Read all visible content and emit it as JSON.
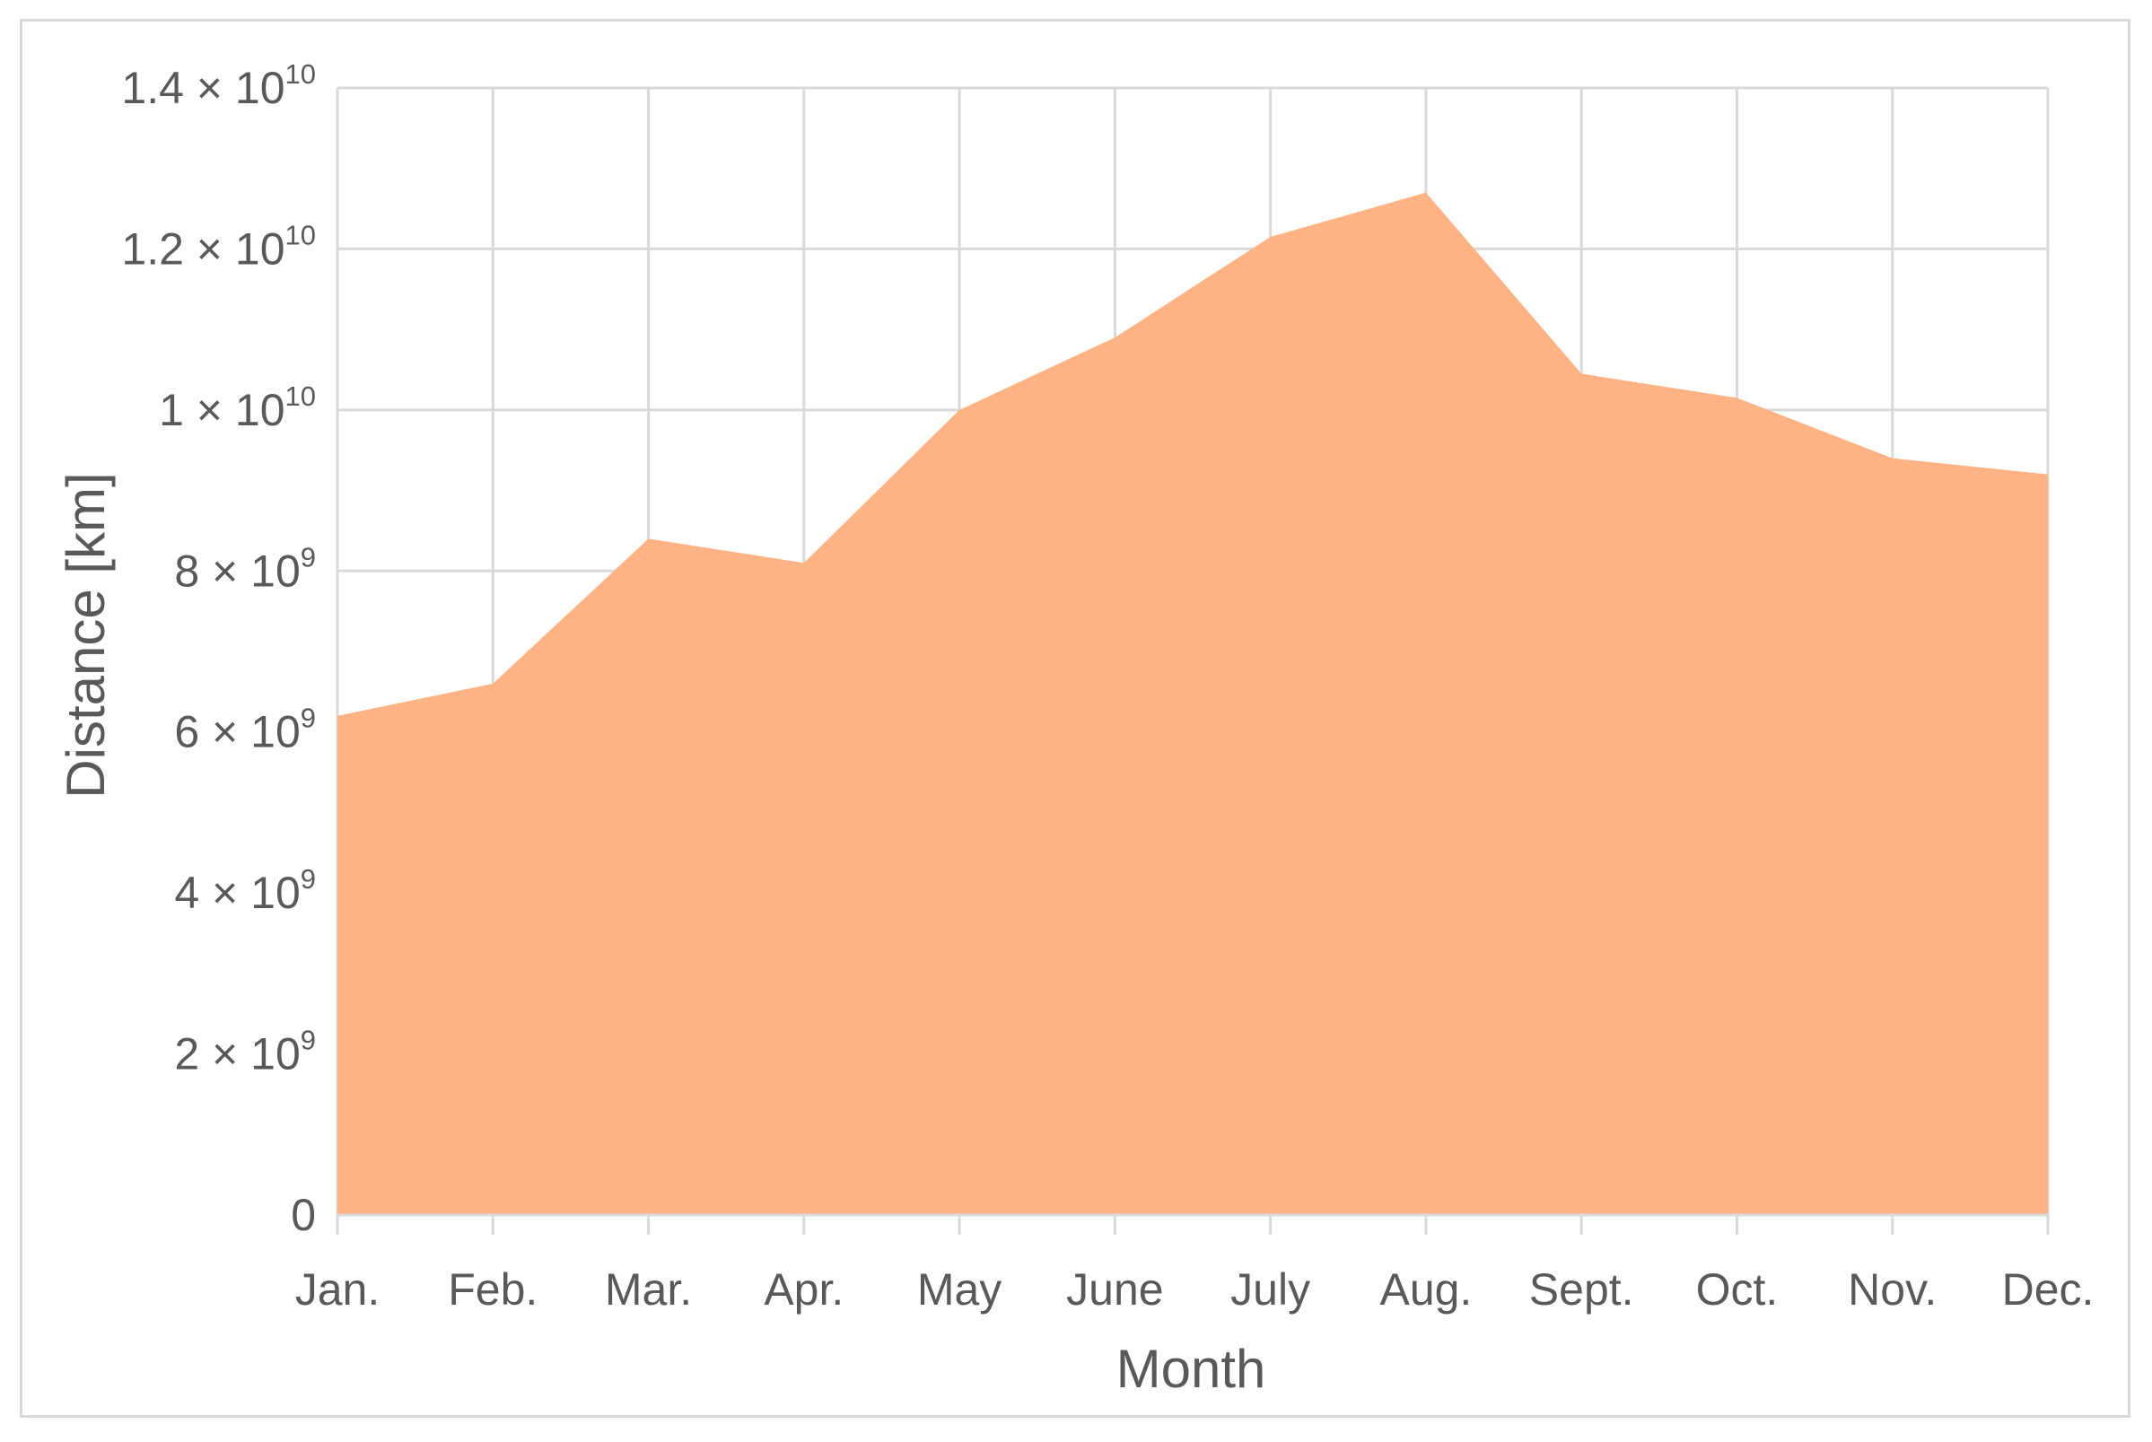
{
  "chart_data": {
    "type": "area",
    "title": "",
    "xlabel": "Month",
    "ylabel": "Distance [km]",
    "categories": [
      "Jan.",
      "Feb.",
      "Mar.",
      "Apr.",
      "May",
      "June",
      "July",
      "Aug.",
      "Sept.",
      "Oct.",
      "Nov.",
      "Dec."
    ],
    "series": [
      {
        "values": [
          6200000000,
          6600000000,
          8400000000,
          8100000000,
          10000000000,
          10900000000,
          12150000000,
          12700000000,
          10450000000,
          10150000000,
          9400000000,
          9200000000
        ]
      }
    ],
    "ylim": [
      0,
      14000000000
    ],
    "yticks": [
      {
        "value": 0,
        "base": "0",
        "exp": ""
      },
      {
        "value": 2000000000,
        "base": "2 × 10",
        "exp": "9"
      },
      {
        "value": 4000000000,
        "base": "4 × 10",
        "exp": "9"
      },
      {
        "value": 6000000000,
        "base": "6 × 10",
        "exp": "9"
      },
      {
        "value": 8000000000,
        "base": "8 × 10",
        "exp": "9"
      },
      {
        "value": 10000000000,
        "base": "1 × 10",
        "exp": "10"
      },
      {
        "value": 12000000000,
        "base": "1.2 × 10",
        "exp": "10"
      },
      {
        "value": 14000000000,
        "base": "1.4 × 10",
        "exp": "10"
      }
    ],
    "grid": true,
    "legend": "none",
    "colors": {
      "fill": "#FFB385",
      "grid": "#D9D9D9",
      "text": "#595959",
      "border": "#D9D9D9"
    }
  }
}
